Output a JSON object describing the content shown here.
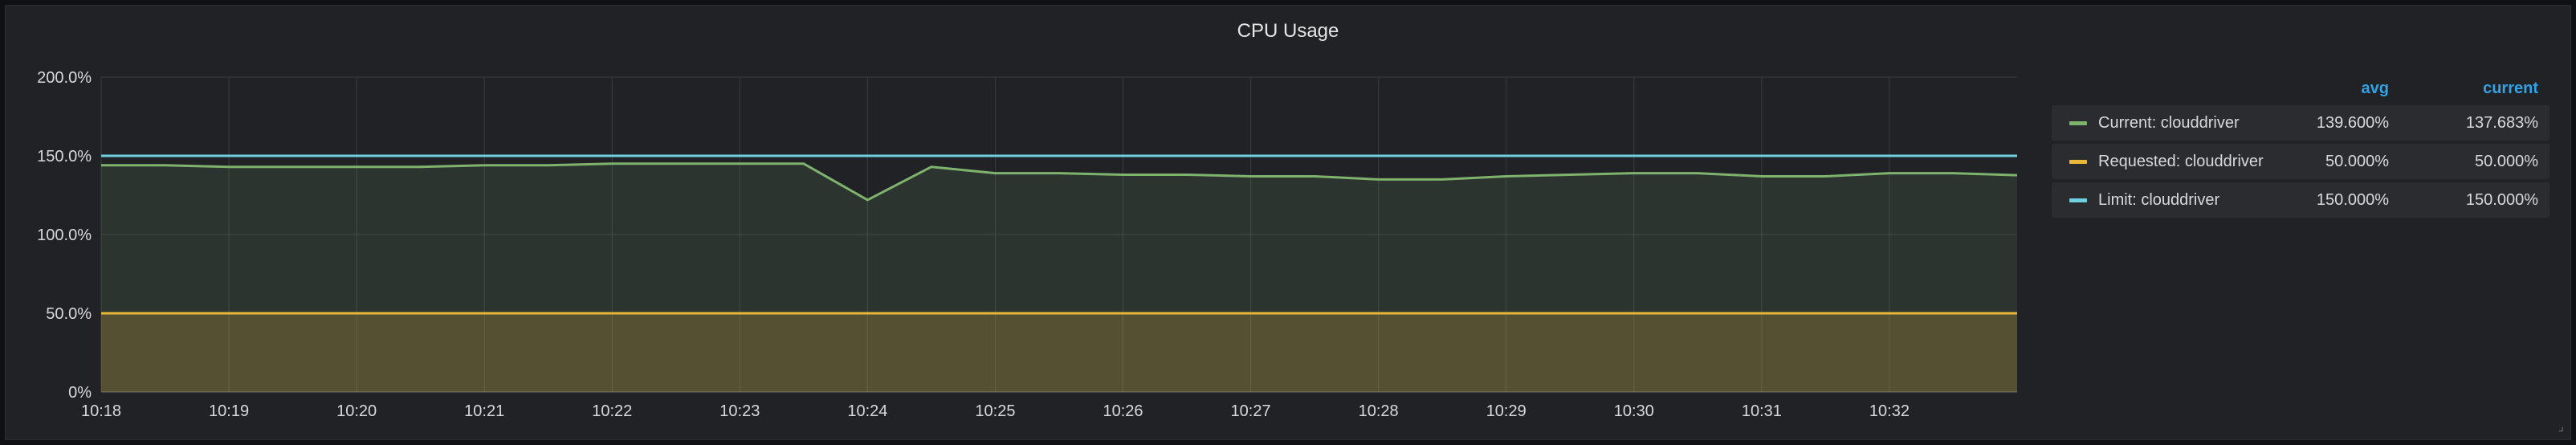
{
  "panel": {
    "title": "CPU Usage"
  },
  "legend": {
    "header_avg": "avg",
    "header_current": "current",
    "items": [
      {
        "name": "Current: clouddriver",
        "avg": "139.600%",
        "current": "137.683%",
        "color": "#7eb26d"
      },
      {
        "name": "Requested: clouddriver",
        "avg": "50.000%",
        "current": "50.000%",
        "color": "#eab839"
      },
      {
        "name": "Limit: clouddriver",
        "avg": "150.000%",
        "current": "150.000%",
        "color": "#6ed0e0"
      }
    ]
  },
  "chart_data": {
    "type": "area",
    "title": "CPU Usage",
    "ylim": [
      0,
      200
    ],
    "y_ticks": [
      "0%",
      "50.0%",
      "100.0%",
      "150.0%",
      "200.0%"
    ],
    "y_tick_values": [
      0,
      50,
      100,
      150,
      200
    ],
    "x_ticks": [
      "10:18",
      "10:19",
      "10:20",
      "10:21",
      "10:22",
      "10:23",
      "10:24",
      "10:25",
      "10:26",
      "10:27",
      "10:28",
      "10:29",
      "10:30",
      "10:31",
      "10:32"
    ],
    "x_range": [
      "10:18:00",
      "10:33:00"
    ],
    "grid": true,
    "legend_position": "right",
    "series": [
      {
        "name": "Current: clouddriver",
        "color": "#7eb26d",
        "x": [
          "10:18:00",
          "10:18:30",
          "10:19:00",
          "10:19:30",
          "10:20:00",
          "10:20:30",
          "10:21:00",
          "10:21:30",
          "10:22:00",
          "10:22:30",
          "10:23:00",
          "10:23:30",
          "10:24:00",
          "10:24:30",
          "10:25:00",
          "10:25:30",
          "10:26:00",
          "10:26:30",
          "10:27:00",
          "10:27:30",
          "10:28:00",
          "10:28:30",
          "10:29:00",
          "10:29:30",
          "10:30:00",
          "10:30:30",
          "10:31:00",
          "10:31:30",
          "10:32:00",
          "10:32:30",
          "10:33:00"
        ],
        "values": [
          144,
          144,
          143,
          143,
          143,
          143,
          144,
          144,
          145,
          145,
          145,
          145,
          122,
          143,
          139,
          139,
          138,
          138,
          137,
          137,
          135,
          135,
          137,
          138,
          139,
          139,
          137,
          137,
          139,
          139,
          137.7
        ]
      },
      {
        "name": "Requested: clouddriver",
        "color": "#eab839",
        "x": [
          "10:18:00",
          "10:33:00"
        ],
        "values": [
          50,
          50
        ]
      },
      {
        "name": "Limit: clouddriver",
        "color": "#6ed0e0",
        "x": [
          "10:18:00",
          "10:33:00"
        ],
        "values": [
          150,
          150
        ]
      }
    ]
  }
}
